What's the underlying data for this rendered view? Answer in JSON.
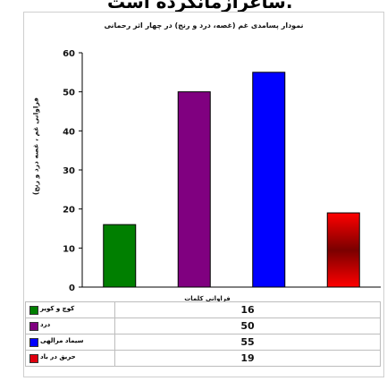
{
  "page": {
    "top_text": "ساعرازمانکرده است."
  },
  "chart_data": {
    "type": "bar",
    "title": "نمودار پسامدی غم (غصه، درد و رنج) در چهار اثر رحمانی",
    "ylabel": "فراوانی غم ، غصه درد و رنج)",
    "xlabel": "فراوانی کلمات",
    "ylim": [
      0,
      60
    ],
    "yticks": [
      0,
      10,
      20,
      30,
      40,
      50,
      60
    ],
    "categories": [
      "کوچ و کویر",
      "درد",
      "سیماد مرالهی",
      "حریق در باد"
    ],
    "values": [
      16,
      50,
      55,
      19
    ],
    "colors": [
      "#007f00",
      "#800080",
      "#0000ff",
      "#e0000f"
    ],
    "grid": false,
    "legend": "table-below"
  }
}
